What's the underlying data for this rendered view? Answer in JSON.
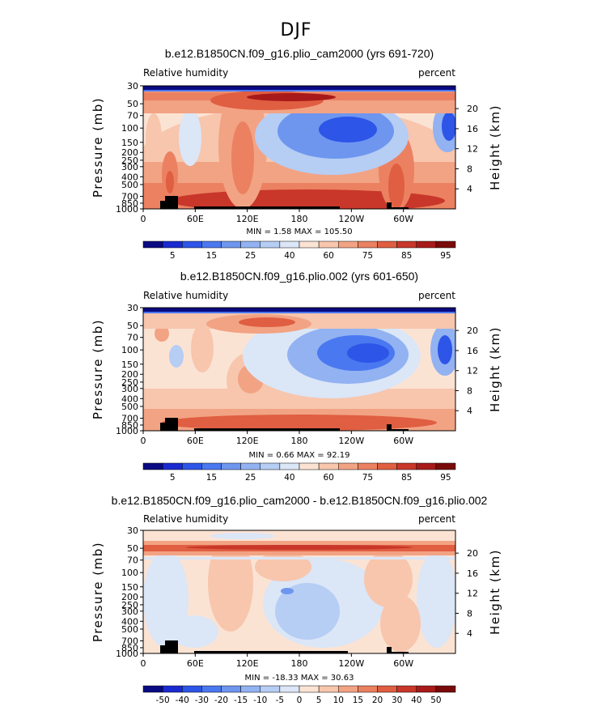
{
  "suptitle": "DJF",
  "palettes": {
    "abs": [
      "#0a0a82",
      "#1a2ad0",
      "#2d55e8",
      "#4a78f0",
      "#6e96ef",
      "#92b2f2",
      "#b6cdf4",
      "#dbe6f7",
      "#fbe3d4",
      "#f7c6ad",
      "#f2a384",
      "#eb8161",
      "#e05e41",
      "#c8372a",
      "#a81a1a",
      "#7a0a0a"
    ],
    "diff": [
      "#0a0a82",
      "#1a2ad0",
      "#2d55e8",
      "#4a78f0",
      "#6e96ef",
      "#92b2f2",
      "#b6cdf4",
      "#dbe6f7",
      "#fbe3d4",
      "#f7c6ad",
      "#f2a384",
      "#eb8161",
      "#e05e41",
      "#c8372a",
      "#a81a1a",
      "#7a0a0a"
    ]
  },
  "chart_data": [
    {
      "type": "heatmap",
      "title": "b.e12.B1850CN.f09_g16.plio_cam2000 (yrs 691-720)",
      "left_label": "Relative humidity",
      "right_label": "percent",
      "ylabel": "Pressure (mb)",
      "y2label": "Height (km)",
      "xticks": [
        "0",
        "60E",
        "120E",
        "180",
        "120W",
        "60W"
      ],
      "yticks": [
        "30",
        "50",
        "70",
        "100",
        "150",
        "200",
        "250",
        "300",
        "400",
        "500",
        "700",
        "850",
        "1000"
      ],
      "y2ticks": [
        "20",
        "16",
        "12",
        "8",
        "4"
      ],
      "minmax": "MIN =    1.58   MAX = 105.50",
      "levels": [
        "5",
        "15",
        "25",
        "40",
        "60",
        "75",
        "85",
        "95"
      ],
      "palette": "abs",
      "min": 1.58,
      "max": 105.5
    },
    {
      "type": "heatmap",
      "title": "b.e12.B1850CN.f09_g16.plio.002 (yrs 601-650)",
      "left_label": "Relative humidity",
      "right_label": "percent",
      "ylabel": "Pressure (mb)",
      "y2label": "Height (km)",
      "xticks": [
        "0",
        "60E",
        "120E",
        "180",
        "120W",
        "60W"
      ],
      "yticks": [
        "30",
        "50",
        "70",
        "100",
        "150",
        "200",
        "250",
        "300",
        "400",
        "500",
        "700",
        "850",
        "1000"
      ],
      "y2ticks": [
        "20",
        "16",
        "12",
        "8",
        "4"
      ],
      "minmax": "MIN =    0.66   MAX =  92.19",
      "levels": [
        "5",
        "15",
        "25",
        "40",
        "60",
        "75",
        "85",
        "95"
      ],
      "palette": "abs",
      "min": 0.66,
      "max": 92.19
    },
    {
      "type": "heatmap",
      "title": "b.e12.B1850CN.f09_g16.plio_cam2000 - b.e12.B1850CN.f09_g16.plio.002",
      "left_label": "Relative humidity",
      "right_label": "percent",
      "ylabel": "Pressure (mb)",
      "y2label": "Height (km)",
      "xticks": [
        "0",
        "60E",
        "120E",
        "180",
        "120W",
        "60W"
      ],
      "yticks": [
        "30",
        "50",
        "70",
        "100",
        "150",
        "200",
        "250",
        "300",
        "400",
        "500",
        "700",
        "850",
        "1000"
      ],
      "y2ticks": [
        "20",
        "16",
        "12",
        "8",
        "4"
      ],
      "minmax": "MIN = -18.33   MAX =  30.63",
      "levels": [
        "-50",
        "-40",
        "-30",
        "-20",
        "-15",
        "-10",
        "-5",
        "0",
        "5",
        "10",
        "15",
        "20",
        "30",
        "40",
        "50"
      ],
      "palette": "diff",
      "min": -18.33,
      "max": 30.63
    }
  ]
}
